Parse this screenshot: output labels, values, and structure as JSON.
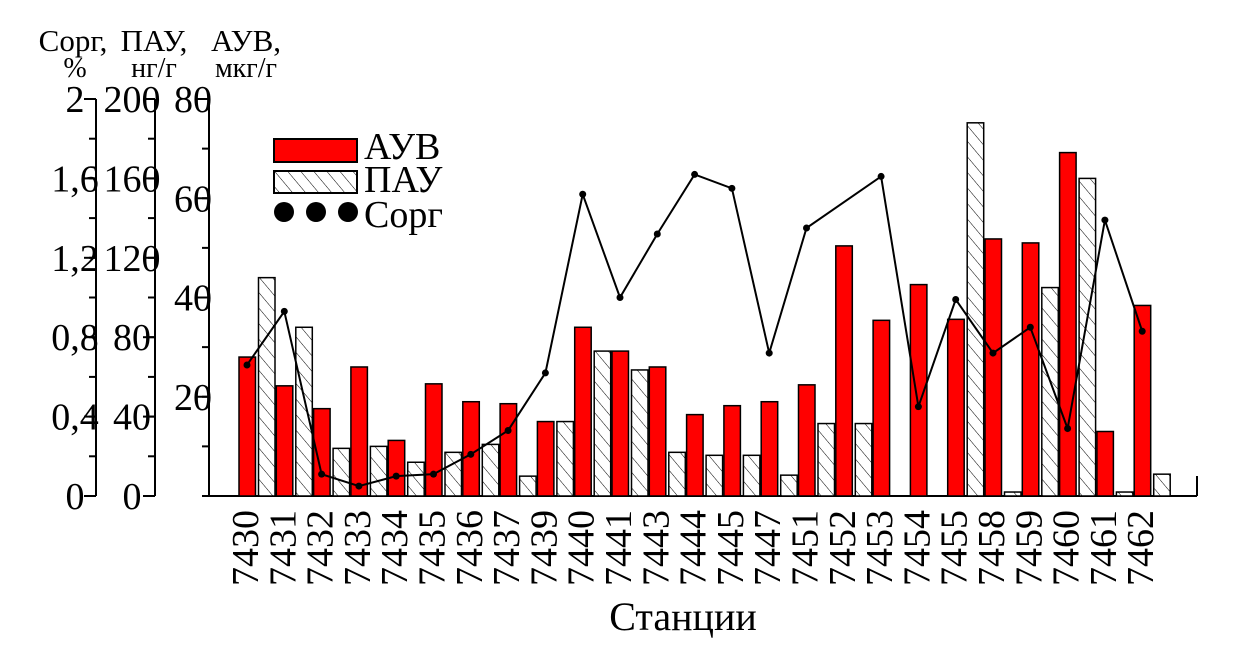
{
  "chart_data": {
    "type": "bar",
    "xlabel": "Станции",
    "categories": [
      "7430",
      "7431",
      "7432",
      "7433",
      "7434",
      "7435",
      "7436",
      "7437",
      "7439",
      "7440",
      "7441",
      "7443",
      "7444",
      "7445",
      "7447",
      "7451",
      "7452",
      "7453",
      "7454",
      "7455",
      "7458",
      "7459",
      "7460",
      "7461",
      "7462"
    ],
    "axes": [
      {
        "id": "corg",
        "title_line1": "Сорг,",
        "title_line2": "%",
        "ylim": [
          0,
          2
        ],
        "ticks": [
          "0",
          "0,4",
          "0,8",
          "1,2",
          "1,6",
          "2"
        ],
        "tick_values": [
          0,
          0.4,
          0.8,
          1.2,
          1.6,
          2
        ]
      },
      {
        "id": "pau",
        "title_line1": "ПАУ,",
        "title_line2": "нг/г",
        "ylim": [
          0,
          200
        ],
        "ticks": [
          "0",
          "40",
          "80",
          "120",
          "160",
          "200"
        ],
        "tick_values": [
          0,
          40,
          80,
          120,
          160,
          200
        ]
      },
      {
        "id": "auv",
        "title_line1": "АУВ,",
        "title_line2": "мкг/г",
        "ylim": [
          0,
          80
        ],
        "ticks": [
          "20",
          "40",
          "60",
          "80"
        ],
        "tick_values": [
          20,
          40,
          60,
          80
        ]
      }
    ],
    "series": [
      {
        "name": "АУВ",
        "kind": "bar",
        "axis": "auv",
        "color": "#ff0000",
        "values": [
          28,
          22.2,
          17.6,
          26,
          11.2,
          22.6,
          19,
          18.6,
          15,
          34,
          29.2,
          26,
          16.4,
          18.2,
          19,
          22.4,
          50.4,
          35.4,
          42.6,
          35.6,
          51.8,
          51,
          69.2,
          13,
          38.4
        ]
      },
      {
        "name": "ПАУ",
        "kind": "bar",
        "axis": "pau",
        "color": "#ffffff",
        "values": [
          110,
          85,
          24,
          25,
          17,
          22,
          26,
          10,
          37.5,
          73,
          63.5,
          22,
          20.5,
          20.5,
          10.5,
          36.5,
          36.5,
          0,
          0,
          188,
          2,
          105,
          160,
          2,
          11
        ]
      },
      {
        "name": "Сорг",
        "kind": "line",
        "axis": "corg",
        "color": "#000000",
        "values": [
          0.66,
          0.93,
          0.11,
          0.05,
          0.1,
          0.11,
          0.21,
          0.33,
          0.62,
          1.52,
          1.0,
          1.32,
          1.62,
          1.55,
          0.72,
          1.35,
          null,
          1.61,
          0.45,
          0.99,
          0.72,
          0.85,
          0.34,
          1.39,
          0.83
        ]
      }
    ],
    "legend": {
      "position": "top-left",
      "entries": [
        "АУВ",
        "ПАУ",
        "Сорг"
      ]
    },
    "grid": false
  }
}
